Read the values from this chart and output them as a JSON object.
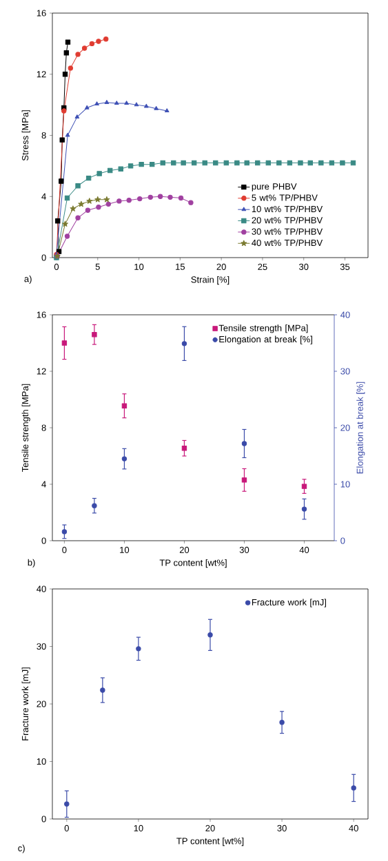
{
  "chart_data": [
    {
      "type": "line",
      "xlabel": "Strain [%]",
      "ylabel": "Stress [MPa]",
      "xlim": [
        -0.5,
        37.8
      ],
      "ylim": [
        0,
        16
      ],
      "xticks": [
        0,
        5,
        10,
        15,
        20,
        25,
        30,
        35
      ],
      "yticks": [
        0,
        4,
        8,
        12,
        16
      ],
      "legend": "bottom right",
      "line_style": "solid",
      "annotations": [
        "a)"
      ],
      "series": [
        {
          "name": "pure PHBV",
          "color": "#000000",
          "marker": "square",
          "x": [
            0.3,
            0.15,
            0.57,
            0.69,
            0.9,
            1.05,
            1.2,
            1.38
          ],
          "values": [
            0.4,
            2.4,
            5.0,
            7.7,
            9.8,
            12.0,
            13.4,
            14.1
          ]
        },
        {
          "name": "5 wt% TP/PHBV",
          "color": "#e03c31",
          "marker": "circle",
          "x": [
            0,
            0.9,
            1.7,
            2.6,
            3.4,
            4.3,
            5.1,
            6.0
          ],
          "values": [
            0.2,
            9.6,
            12.4,
            13.3,
            13.7,
            14.0,
            14.15,
            14.3
          ]
        },
        {
          "name": "10 wt% TP/PHBV",
          "color": "#3f51b5",
          "marker": "triangle",
          "x": [
            0,
            1.35,
            2.5,
            3.7,
            4.9,
            6.1,
            7.3,
            8.5,
            9.7,
            10.9,
            12.1,
            13.4
          ],
          "values": [
            0.2,
            8.0,
            9.2,
            9.8,
            10.05,
            10.15,
            10.1,
            10.1,
            10.0,
            9.9,
            9.75,
            9.6
          ]
        },
        {
          "name": "20 wt% TP/PHBV",
          "color": "#3a8a85",
          "marker": "square",
          "x": [
            0,
            1.3,
            2.6,
            3.9,
            5.2,
            6.5,
            7.8,
            9.0,
            10.3,
            11.6,
            12.9,
            14.2,
            15.4,
            16.7,
            18.0,
            19.3,
            20.6,
            21.9,
            23.1,
            24.4,
            25.7,
            27.0,
            28.3,
            29.6,
            30.8,
            32.1,
            33.4,
            34.7,
            36.0
          ],
          "values": [
            0,
            3.9,
            4.7,
            5.2,
            5.5,
            5.7,
            5.8,
            6.0,
            6.1,
            6.1,
            6.2,
            6.2,
            6.2,
            6.2,
            6.2,
            6.2,
            6.2,
            6.2,
            6.2,
            6.2,
            6.2,
            6.2,
            6.2,
            6.2,
            6.2,
            6.2,
            6.2,
            6.2,
            6.2
          ]
        },
        {
          "name": "30 wt% TP/PHBV",
          "color": "#a040a0",
          "marker": "circle",
          "x": [
            0.1,
            1.3,
            2.6,
            3.8,
            5.1,
            6.3,
            7.6,
            8.8,
            10.1,
            11.4,
            12.6,
            13.8,
            15.1,
            16.3
          ],
          "values": [
            0.1,
            1.4,
            2.6,
            3.1,
            3.3,
            3.5,
            3.7,
            3.75,
            3.85,
            3.95,
            4.0,
            3.95,
            3.9,
            3.6
          ]
        },
        {
          "name": "40 wt% TP/PHBV",
          "color": "#7a7a30",
          "marker": "star",
          "x": [
            0.1,
            1.05,
            2.0,
            3.0,
            4.0,
            5.0,
            6.1
          ],
          "values": [
            0.1,
            2.2,
            3.2,
            3.5,
            3.7,
            3.8,
            3.8
          ]
        }
      ]
    },
    {
      "type": "scatter",
      "xlabel": "TP content [wt%]",
      "ylabel": "Tensile strength [MPa]",
      "y2label": "Elongation at break [%]",
      "xlim": [
        -2,
        45
      ],
      "ylim": [
        0,
        16
      ],
      "y2lim": [
        0,
        40
      ],
      "xticks": [
        0,
        10,
        20,
        30,
        40
      ],
      "yticks": [
        0,
        4,
        8,
        12,
        16
      ],
      "y2ticks": [
        0,
        10,
        20,
        30,
        40
      ],
      "legend": "top right",
      "annotations": [
        "b)"
      ],
      "series": [
        {
          "name": "Tensile strength [MPa]",
          "color": "#c8187a",
          "marker": "square",
          "x": [
            0,
            5,
            10,
            20,
            30,
            40
          ],
          "values": [
            14.0,
            14.6,
            9.55,
            6.55,
            4.3,
            3.85
          ],
          "errors": [
            1.15,
            0.7,
            0.85,
            0.55,
            0.8,
            0.5
          ]
        },
        {
          "name": "Elongation at break [%]",
          "color": "#3a4aa8",
          "marker": "circle",
          "axis": "y2",
          "x": [
            0,
            5,
            10,
            20,
            30,
            40
          ],
          "values": [
            1.6,
            6.2,
            14.5,
            34.9,
            17.2,
            5.6
          ],
          "errors": [
            1.2,
            1.3,
            1.8,
            3.0,
            2.5,
            1.8
          ]
        }
      ]
    },
    {
      "type": "scatter",
      "xlabel": "TP content [wt%]",
      "ylabel": "Fracture work [mJ]",
      "xlim": [
        -2,
        42
      ],
      "ylim": [
        0,
        40
      ],
      "xticks": [
        0,
        10,
        20,
        30,
        40
      ],
      "yticks": [
        0,
        10,
        20,
        30,
        40
      ],
      "legend": "top right",
      "annotations": [
        "c)"
      ],
      "series": [
        {
          "name": "Fracture work [mJ]",
          "color": "#3a4aa8",
          "marker": "circle",
          "x": [
            0,
            5,
            10,
            20,
            30,
            40
          ],
          "values": [
            2.6,
            22.4,
            29.6,
            32.0,
            16.8,
            5.4
          ],
          "errors": [
            2.3,
            2.15,
            2.0,
            2.7,
            1.9,
            2.35
          ]
        }
      ]
    }
  ]
}
